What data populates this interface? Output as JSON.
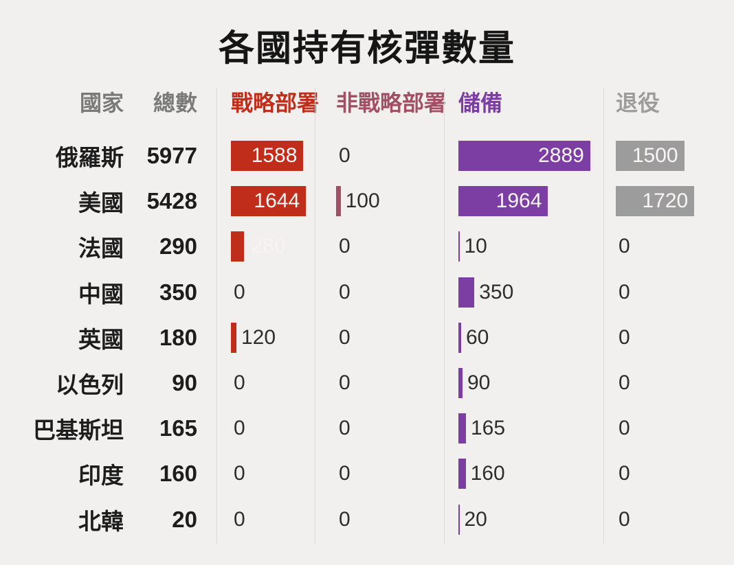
{
  "title": "各國持有核彈數量",
  "chart_data": {
    "type": "bar",
    "orientation": "horizontal",
    "title": "各國持有核彈數量",
    "columns": {
      "country": "國家",
      "total": "總數"
    },
    "series": [
      {
        "id": "strategic-deployed",
        "name": "戰略部署",
        "color": "#c02e1b"
      },
      {
        "id": "nonstrategic-deployed",
        "name": "非戰略部署",
        "color": "#a24f64"
      },
      {
        "id": "stockpile",
        "name": "儲備",
        "color": "#7d3ea4"
      },
      {
        "id": "retired",
        "name": "退役",
        "color": "#9c9c9c"
      }
    ],
    "rows": [
      {
        "country": "俄羅斯",
        "total": 5977,
        "values": [
          1588,
          0,
          2889,
          1500
        ],
        "label_modes": [
          "inside",
          "outside",
          "inside",
          "inside"
        ]
      },
      {
        "country": "美國",
        "total": 5428,
        "values": [
          1644,
          100,
          1964,
          1720
        ],
        "label_modes": [
          "inside",
          "outside",
          "inside",
          "inside"
        ]
      },
      {
        "country": "法國",
        "total": 290,
        "values": [
          280,
          0,
          10,
          0
        ],
        "label_modes": [
          "outside-light",
          "outside",
          "outside",
          "outside"
        ]
      },
      {
        "country": "中國",
        "total": 350,
        "values": [
          0,
          0,
          350,
          0
        ],
        "label_modes": [
          "outside",
          "outside",
          "outside",
          "outside"
        ]
      },
      {
        "country": "英國",
        "total": 180,
        "values": [
          120,
          0,
          60,
          0
        ],
        "label_modes": [
          "outside",
          "outside",
          "outside",
          "outside"
        ]
      },
      {
        "country": "以色列",
        "total": 90,
        "values": [
          0,
          0,
          90,
          0
        ],
        "label_modes": [
          "outside",
          "outside",
          "outside",
          "outside"
        ]
      },
      {
        "country": "巴基斯坦",
        "total": 165,
        "values": [
          0,
          0,
          165,
          0
        ],
        "label_modes": [
          "outside",
          "outside",
          "outside",
          "outside"
        ]
      },
      {
        "country": "印度",
        "total": 160,
        "values": [
          0,
          0,
          160,
          0
        ],
        "label_modes": [
          "outside",
          "outside",
          "outside",
          "outside"
        ]
      },
      {
        "country": "北韓",
        "total": 20,
        "values": [
          0,
          0,
          20,
          0
        ],
        "label_modes": [
          "outside",
          "outside",
          "outside",
          "outside"
        ]
      }
    ],
    "background_color": "#f1f0ee",
    "grid": "column-dividers-only",
    "legend_position": "column-headers"
  }
}
